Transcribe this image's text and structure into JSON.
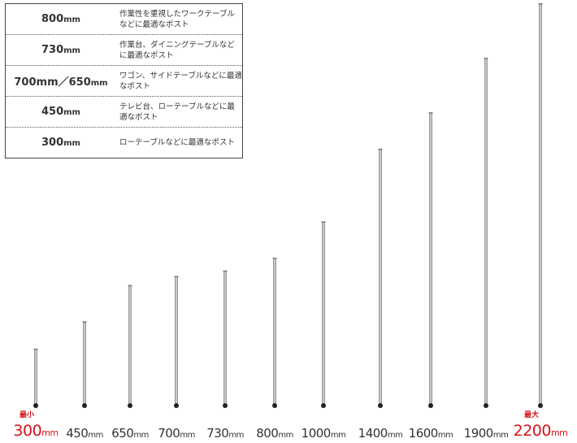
{
  "guide": [
    {
      "size": "800",
      "unit": "mm",
      "desc": "作業性を重視したワークテーブルなどに最適なポスト"
    },
    {
      "size": "730",
      "unit": "mm",
      "desc": "作業台、ダイニングテーブルなどに最適なポスト"
    },
    {
      "size": "700mm／650",
      "unit": "mm",
      "desc": "ワゴン、サイドテーブルなどに最適なポスト"
    },
    {
      "size": "450",
      "unit": "mm",
      "desc": "テレビ台、ローテーブルなどに最適なポスト"
    },
    {
      "size": "300",
      "unit": "mm",
      "desc": "ローテーブルなどに最適なポスト"
    }
  ],
  "posts": [
    {
      "length": 300,
      "unit": "mm",
      "tag": "最小",
      "highlight": true
    },
    {
      "length": 450,
      "unit": "mm"
    },
    {
      "length": 650,
      "unit": "mm"
    },
    {
      "length": 700,
      "unit": "mm"
    },
    {
      "length": 730,
      "unit": "mm"
    },
    {
      "length": 800,
      "unit": "mm"
    },
    {
      "length": 1000,
      "unit": "mm"
    },
    {
      "length": 1400,
      "unit": "mm"
    },
    {
      "length": 1600,
      "unit": "mm"
    },
    {
      "length": 1900,
      "unit": "mm"
    },
    {
      "length": 2200,
      "unit": "mm",
      "tag": "最大",
      "highlight": true
    }
  ],
  "colors": {
    "highlight": "#d2151a",
    "post": "#9a9a9a"
  }
}
